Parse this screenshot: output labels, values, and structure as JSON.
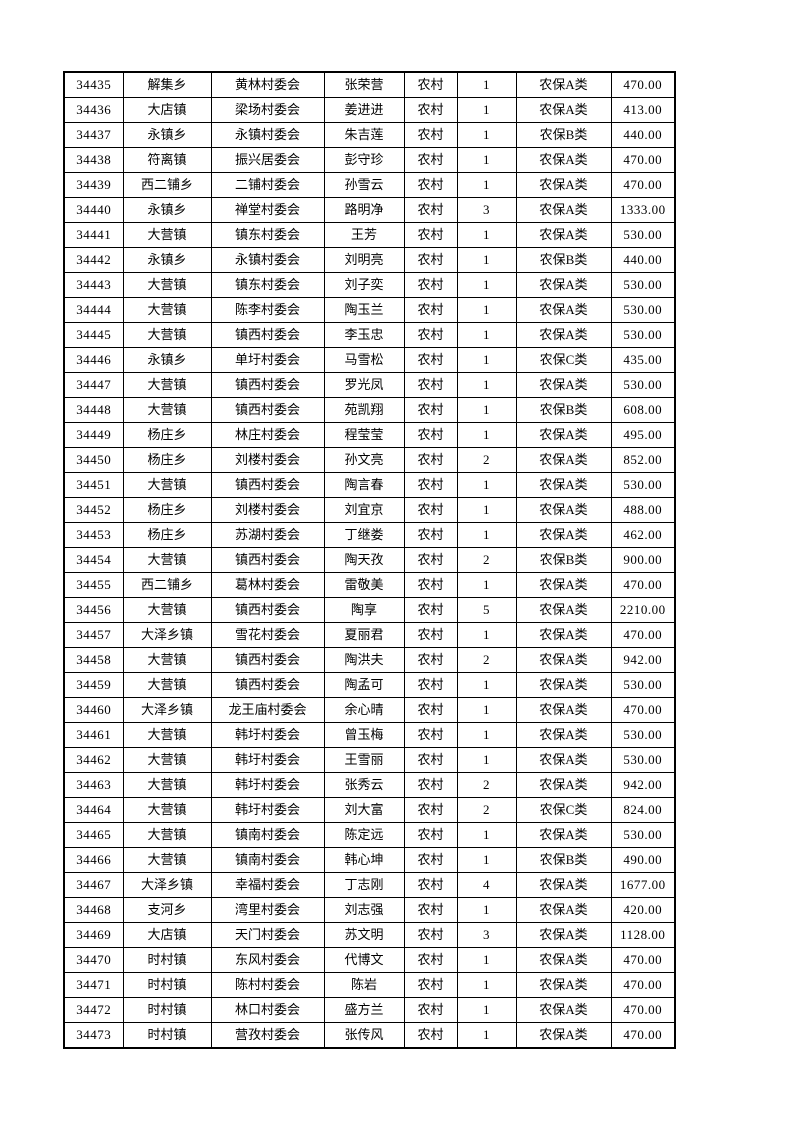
{
  "document": {
    "record_type_label": "农村",
    "category_values": [
      "农保A类",
      "农保B类",
      "农保C类"
    ],
    "rows": [
      {
        "id": "34435",
        "township": "解集乡",
        "village": "黄林村委会",
        "name": "张荣营",
        "type": "农村",
        "count": "1",
        "category": "农保A类",
        "amount": "470.00"
      },
      {
        "id": "34436",
        "township": "大店镇",
        "village": "梁场村委会",
        "name": "姜进进",
        "type": "农村",
        "count": "1",
        "category": "农保A类",
        "amount": "413.00"
      },
      {
        "id": "34437",
        "township": "永镇乡",
        "village": "永镇村委会",
        "name": "朱吉莲",
        "type": "农村",
        "count": "1",
        "category": "农保B类",
        "amount": "440.00"
      },
      {
        "id": "34438",
        "township": "符离镇",
        "village": "振兴居委会",
        "name": "彭守珍",
        "type": "农村",
        "count": "1",
        "category": "农保A类",
        "amount": "470.00"
      },
      {
        "id": "34439",
        "township": "西二铺乡",
        "village": "二铺村委会",
        "name": "孙雪云",
        "type": "农村",
        "count": "1",
        "category": "农保A类",
        "amount": "470.00"
      },
      {
        "id": "34440",
        "township": "永镇乡",
        "village": "禅堂村委会",
        "name": "路明净",
        "type": "农村",
        "count": "3",
        "category": "农保A类",
        "amount": "1333.00"
      },
      {
        "id": "34441",
        "township": "大营镇",
        "village": "镇东村委会",
        "name": "王芳",
        "type": "农村",
        "count": "1",
        "category": "农保A类",
        "amount": "530.00"
      },
      {
        "id": "34442",
        "township": "永镇乡",
        "village": "永镇村委会",
        "name": "刘明亮",
        "type": "农村",
        "count": "1",
        "category": "农保B类",
        "amount": "440.00"
      },
      {
        "id": "34443",
        "township": "大营镇",
        "village": "镇东村委会",
        "name": "刘子奕",
        "type": "农村",
        "count": "1",
        "category": "农保A类",
        "amount": "530.00"
      },
      {
        "id": "34444",
        "township": "大营镇",
        "village": "陈李村委会",
        "name": "陶玉兰",
        "type": "农村",
        "count": "1",
        "category": "农保A类",
        "amount": "530.00"
      },
      {
        "id": "34445",
        "township": "大营镇",
        "village": "镇西村委会",
        "name": "李玉忠",
        "type": "农村",
        "count": "1",
        "category": "农保A类",
        "amount": "530.00"
      },
      {
        "id": "34446",
        "township": "永镇乡",
        "village": "单圩村委会",
        "name": "马雪松",
        "type": "农村",
        "count": "1",
        "category": "农保C类",
        "amount": "435.00"
      },
      {
        "id": "34447",
        "township": "大营镇",
        "village": "镇西村委会",
        "name": "罗光凤",
        "type": "农村",
        "count": "1",
        "category": "农保A类",
        "amount": "530.00"
      },
      {
        "id": "34448",
        "township": "大营镇",
        "village": "镇西村委会",
        "name": "苑凯翔",
        "type": "农村",
        "count": "1",
        "category": "农保B类",
        "amount": "608.00"
      },
      {
        "id": "34449",
        "township": "杨庄乡",
        "village": "林庄村委会",
        "name": "程莹莹",
        "type": "农村",
        "count": "1",
        "category": "农保A类",
        "amount": "495.00"
      },
      {
        "id": "34450",
        "township": "杨庄乡",
        "village": "刘楼村委会",
        "name": "孙文亮",
        "type": "农村",
        "count": "2",
        "category": "农保A类",
        "amount": "852.00"
      },
      {
        "id": "34451",
        "township": "大营镇",
        "village": "镇西村委会",
        "name": "陶言春",
        "type": "农村",
        "count": "1",
        "category": "农保A类",
        "amount": "530.00"
      },
      {
        "id": "34452",
        "township": "杨庄乡",
        "village": "刘楼村委会",
        "name": "刘宜京",
        "type": "农村",
        "count": "1",
        "category": "农保A类",
        "amount": "488.00"
      },
      {
        "id": "34453",
        "township": "杨庄乡",
        "village": "苏湖村委会",
        "name": "丁继娄",
        "type": "农村",
        "count": "1",
        "category": "农保A类",
        "amount": "462.00"
      },
      {
        "id": "34454",
        "township": "大营镇",
        "village": "镇西村委会",
        "name": "陶天孜",
        "type": "农村",
        "count": "2",
        "category": "农保B类",
        "amount": "900.00"
      },
      {
        "id": "34455",
        "township": "西二铺乡",
        "village": "葛林村委会",
        "name": "雷敬美",
        "type": "农村",
        "count": "1",
        "category": "农保A类",
        "amount": "470.00"
      },
      {
        "id": "34456",
        "township": "大营镇",
        "village": "镇西村委会",
        "name": "陶享",
        "type": "农村",
        "count": "5",
        "category": "农保A类",
        "amount": "2210.00"
      },
      {
        "id": "34457",
        "township": "大泽乡镇",
        "village": "雪花村委会",
        "name": "夏丽君",
        "type": "农村",
        "count": "1",
        "category": "农保A类",
        "amount": "470.00"
      },
      {
        "id": "34458",
        "township": "大营镇",
        "village": "镇西村委会",
        "name": "陶洪夫",
        "type": "农村",
        "count": "2",
        "category": "农保A类",
        "amount": "942.00"
      },
      {
        "id": "34459",
        "township": "大营镇",
        "village": "镇西村委会",
        "name": "陶孟可",
        "type": "农村",
        "count": "1",
        "category": "农保A类",
        "amount": "530.00"
      },
      {
        "id": "34460",
        "township": "大泽乡镇",
        "village": "龙王庙村委会",
        "name": "余心晴",
        "type": "农村",
        "count": "1",
        "category": "农保A类",
        "amount": "470.00"
      },
      {
        "id": "34461",
        "township": "大营镇",
        "village": "韩圩村委会",
        "name": "曾玉梅",
        "type": "农村",
        "count": "1",
        "category": "农保A类",
        "amount": "530.00"
      },
      {
        "id": "34462",
        "township": "大营镇",
        "village": "韩圩村委会",
        "name": "王雪丽",
        "type": "农村",
        "count": "1",
        "category": "农保A类",
        "amount": "530.00"
      },
      {
        "id": "34463",
        "township": "大营镇",
        "village": "韩圩村委会",
        "name": "张秀云",
        "type": "农村",
        "count": "2",
        "category": "农保A类",
        "amount": "942.00"
      },
      {
        "id": "34464",
        "township": "大营镇",
        "village": "韩圩村委会",
        "name": "刘大富",
        "type": "农村",
        "count": "2",
        "category": "农保C类",
        "amount": "824.00"
      },
      {
        "id": "34465",
        "township": "大营镇",
        "village": "镇南村委会",
        "name": "陈定远",
        "type": "农村",
        "count": "1",
        "category": "农保A类",
        "amount": "530.00"
      },
      {
        "id": "34466",
        "township": "大营镇",
        "village": "镇南村委会",
        "name": "韩心坤",
        "type": "农村",
        "count": "1",
        "category": "农保B类",
        "amount": "490.00"
      },
      {
        "id": "34467",
        "township": "大泽乡镇",
        "village": "幸福村委会",
        "name": "丁志刚",
        "type": "农村",
        "count": "4",
        "category": "农保A类",
        "amount": "1677.00"
      },
      {
        "id": "34468",
        "township": "支河乡",
        "village": "湾里村委会",
        "name": "刘志强",
        "type": "农村",
        "count": "1",
        "category": "农保A类",
        "amount": "420.00"
      },
      {
        "id": "34469",
        "township": "大店镇",
        "village": "天门村委会",
        "name": "苏文明",
        "type": "农村",
        "count": "3",
        "category": "农保A类",
        "amount": "1128.00"
      },
      {
        "id": "34470",
        "township": "时村镇",
        "village": "东风村委会",
        "name": "代博文",
        "type": "农村",
        "count": "1",
        "category": "农保A类",
        "amount": "470.00"
      },
      {
        "id": "34471",
        "township": "时村镇",
        "village": "陈村村委会",
        "name": "陈岩",
        "type": "农村",
        "count": "1",
        "category": "农保A类",
        "amount": "470.00"
      },
      {
        "id": "34472",
        "township": "时村镇",
        "village": "林口村委会",
        "name": "盛方兰",
        "type": "农村",
        "count": "1",
        "category": "农保A类",
        "amount": "470.00"
      },
      {
        "id": "34473",
        "township": "时村镇",
        "village": "营孜村委会",
        "name": "张传风",
        "type": "农村",
        "count": "1",
        "category": "农保A类",
        "amount": "470.00"
      }
    ]
  }
}
